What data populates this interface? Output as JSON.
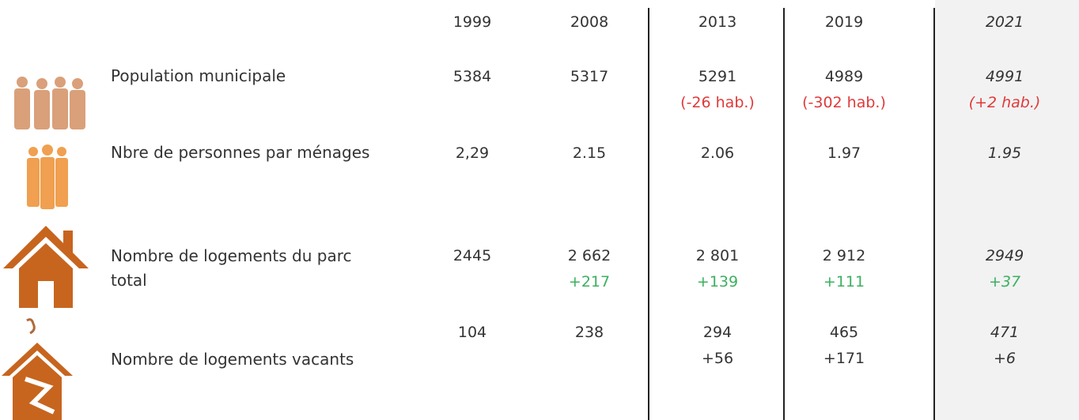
{
  "table": {
    "header": [
      "1999",
      "2008",
      "2013",
      "2019",
      "2021"
    ],
    "rows": [
      {
        "label": "Population municipale",
        "cells": [
          {
            "value": "5384"
          },
          {
            "value": "5317"
          },
          {
            "value": "5291",
            "change": "(-26 hab.)"
          },
          {
            "value": "4989",
            "change": "(-302 hab.)"
          },
          {
            "value": "4991",
            "change": "(+2 hab.)"
          }
        ]
      },
      {
        "label": "Nbre de personnes par ménages",
        "cells": [
          {
            "value": "2,29"
          },
          {
            "value": "2.15"
          },
          {
            "value": "2.06"
          },
          {
            "value": "1.97"
          },
          {
            "value": "1.95"
          }
        ]
      },
      {
        "label": "Nombre de logements du parc total",
        "cells": [
          {
            "value": "2445"
          },
          {
            "value": "2 662",
            "change": "+217"
          },
          {
            "value": "2 801",
            "change": "+139"
          },
          {
            "value": "2 912",
            "change": "+111"
          },
          {
            "value": "2949",
            "change": "+37"
          }
        ]
      },
      {
        "label": "Nombre de logements vacants",
        "cells": [
          {
            "value": "104"
          },
          {
            "value": "238"
          },
          {
            "value": "294",
            "change": "+56"
          },
          {
            "value": "465",
            "change": "+171"
          },
          {
            "value": "471",
            "change": "+6"
          }
        ]
      }
    ]
  }
}
